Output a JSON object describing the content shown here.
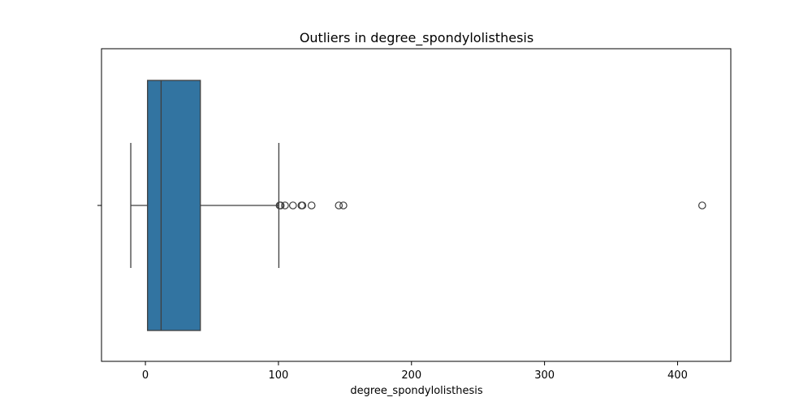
{
  "chart_data": {
    "type": "boxplot",
    "title": "Outliers in degree_spondylolisthesis",
    "xlabel": "degree_spondylolisthesis",
    "ylabel": "",
    "orientation": "horizontal",
    "xlim": [
      -33,
      440
    ],
    "xticks": [
      0,
      100,
      200,
      300,
      400
    ],
    "grid": false,
    "legend": "none",
    "box": {
      "whisker_low": -11.0,
      "q1": 1.6,
      "median": 11.8,
      "q3": 41.3,
      "whisker_high": 100.3
    },
    "outliers": [
      100.9,
      101.7,
      104.9,
      110.9,
      117.3,
      118.0,
      124.9,
      145.4,
      148.8,
      418.5
    ],
    "colors": {
      "box_fill": "#3274a1",
      "line": "#3f3f3f",
      "axes": "#000000"
    }
  }
}
